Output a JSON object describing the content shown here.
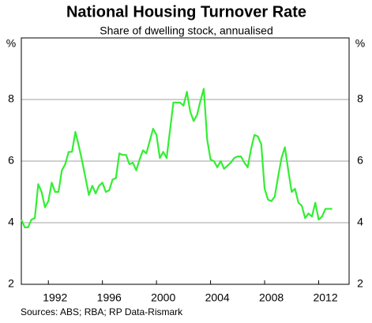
{
  "chart_data": {
    "type": "line",
    "title": "National Housing Turnover Rate",
    "subtitle": "Share of dwelling stock, annualised",
    "y_unit": "%",
    "source": "Sources: ABS; RBA; RP Data-Rismark",
    "x": [
      1990,
      1990.25,
      1990.5,
      1990.75,
      1991,
      1991.25,
      1991.5,
      1991.75,
      1992,
      1992.25,
      1992.5,
      1992.75,
      1993,
      1993.25,
      1993.5,
      1993.75,
      1994,
      1994.25,
      1994.5,
      1994.75,
      1995,
      1995.25,
      1995.5,
      1995.75,
      1996,
      1996.25,
      1996.5,
      1996.75,
      1997,
      1997.25,
      1997.5,
      1997.75,
      1998,
      1998.25,
      1998.5,
      1998.75,
      1999,
      1999.25,
      1999.5,
      1999.75,
      2000,
      2000.25,
      2000.5,
      2000.75,
      2001,
      2001.25,
      2001.5,
      2001.75,
      2002,
      2002.25,
      2002.5,
      2002.75,
      2003,
      2003.25,
      2003.5,
      2003.75,
      2004,
      2004.25,
      2004.5,
      2004.75,
      2005,
      2005.25,
      2005.5,
      2005.75,
      2006,
      2006.25,
      2006.5,
      2006.75,
      2007,
      2007.25,
      2007.5,
      2007.75,
      2008,
      2008.25,
      2008.5,
      2008.75,
      2009,
      2009.25,
      2009.5,
      2009.75,
      2010,
      2010.25,
      2010.5,
      2010.75,
      2011,
      2011.25,
      2011.5,
      2011.75,
      2012,
      2012.25,
      2012.5,
      2012.75,
      2013
    ],
    "series": [
      {
        "name": "Turnover rate",
        "color": "#33ee33",
        "values": [
          4.1,
          3.85,
          3.85,
          4.1,
          4.15,
          5.25,
          5.0,
          4.5,
          4.7,
          5.3,
          5.0,
          5.0,
          5.7,
          5.9,
          6.3,
          6.3,
          6.95,
          6.5,
          6.0,
          5.45,
          4.9,
          5.2,
          4.95,
          5.2,
          5.3,
          5.0,
          5.05,
          5.4,
          5.45,
          6.25,
          6.2,
          6.2,
          5.9,
          5.95,
          5.7,
          6.05,
          6.35,
          6.25,
          6.65,
          7.05,
          6.85,
          6.1,
          6.3,
          6.1,
          7.0,
          7.9,
          7.9,
          7.9,
          7.8,
          8.25,
          7.6,
          7.3,
          7.5,
          7.95,
          8.35,
          6.7,
          6.05,
          6.0,
          5.8,
          6.0,
          5.75,
          5.85,
          5.95,
          6.1,
          6.15,
          6.15,
          5.95,
          5.8,
          6.4,
          6.85,
          6.8,
          6.55,
          5.1,
          4.75,
          4.7,
          4.85,
          5.5,
          6.1,
          6.45,
          5.7,
          5.0,
          5.1,
          4.65,
          4.55,
          4.15,
          4.3,
          4.2,
          4.65,
          4.1,
          4.2,
          4.45,
          4.45,
          4.45
        ]
      }
    ],
    "xlim": [
      1990,
      2014.25
    ],
    "ylim": [
      2,
      10
    ],
    "xticks": [
      1992,
      1996,
      2000,
      2004,
      2008,
      2012
    ],
    "yticks": [
      2,
      4,
      6,
      8
    ],
    "grid": true
  }
}
